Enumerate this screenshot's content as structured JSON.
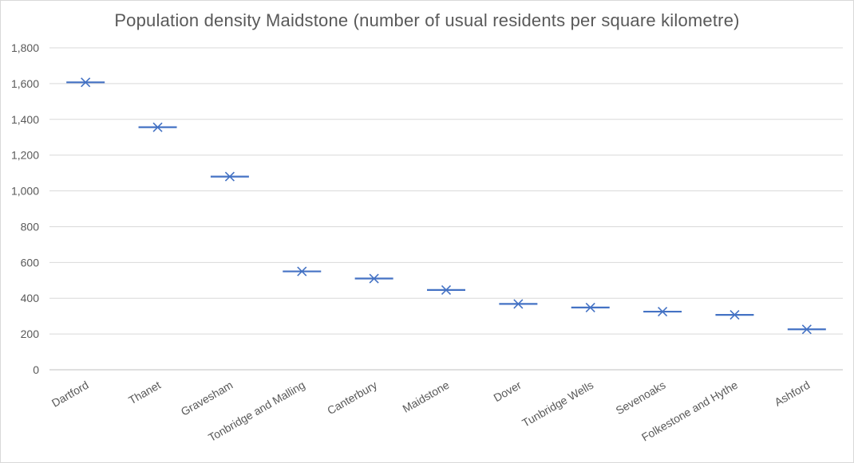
{
  "chart_data": {
    "type": "scatter",
    "title": "Population density Maidstone (number of usual residents per square kilometre)",
    "categories": [
      "Dartford",
      "Thanet",
      "Gravesham",
      "Tonbridge and Malling",
      "Canterbury",
      "Maidstone",
      "Dover",
      "Tunbridge Wells",
      "Sevenoaks",
      "Folkestone and Hythe",
      "Ashford"
    ],
    "values": [
      1607,
      1356,
      1080,
      550,
      510,
      446,
      368,
      348,
      325,
      307,
      226
    ],
    "ylim": [
      0,
      1800
    ],
    "yticks": [
      0,
      200,
      400,
      600,
      800,
      1000,
      1200,
      1400,
      1600,
      1800
    ],
    "ytick_labels": [
      "0",
      "200",
      "400",
      "600",
      "800",
      "1,000",
      "1,200",
      "1,400",
      "1,600",
      "1,800"
    ],
    "xlabel": "",
    "ylabel": "",
    "grid": true,
    "marker": "x with horizontal dash",
    "color": "#4472c4"
  }
}
